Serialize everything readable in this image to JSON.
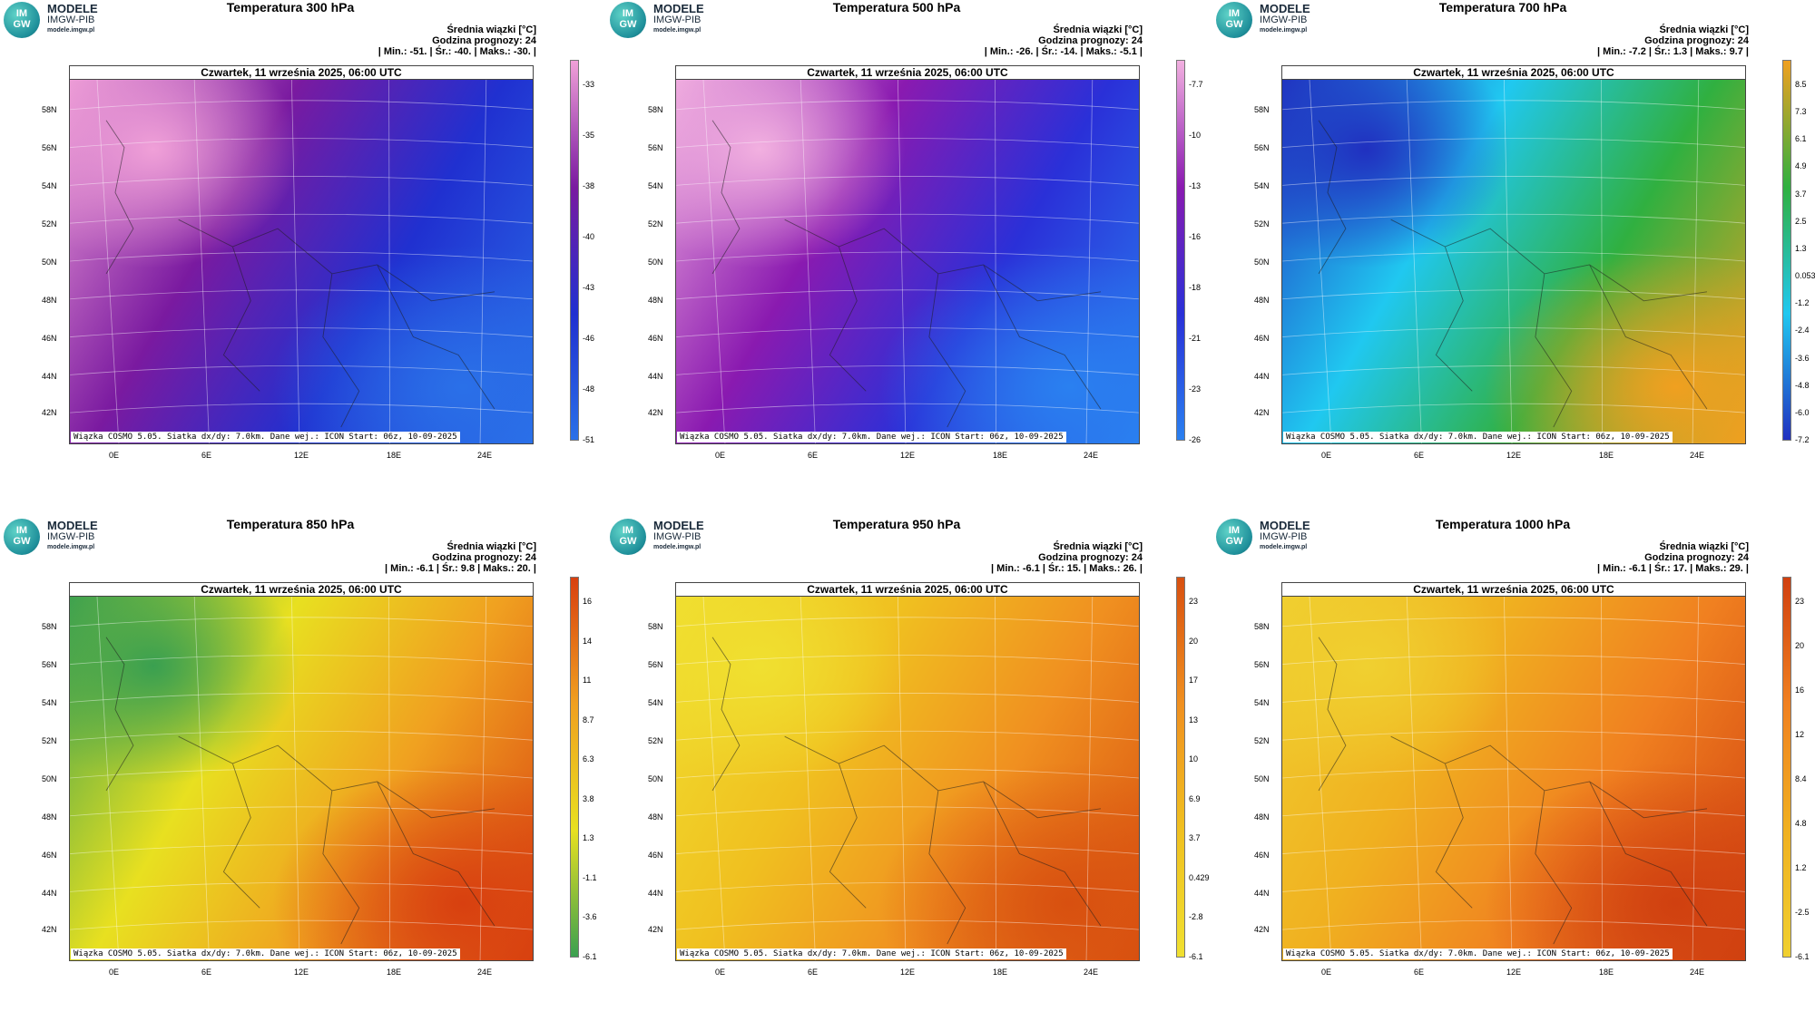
{
  "brand": {
    "line1": "MODELE",
    "line2": "IMGW-PIB",
    "line3": "modele.imgw.pl",
    "logo_top": "IM",
    "logo_bottom": "GW"
  },
  "common": {
    "date": "Czwartek, 11 września 2025, 06:00 UTC",
    "subtitle": "Średnia wiązki [°C]",
    "forecast_hour": "Godzina prognozy: 24",
    "footer": "Wiązka COSMO 5.05. Siatka dx/dy: 7.0km. Dane wej.: ICON Start: 06z, 10-09-2025",
    "lat_labels": [
      "58N",
      "56N",
      "54N",
      "52N",
      "50N",
      "48N",
      "46N",
      "44N",
      "42N"
    ],
    "lon_labels": [
      "0E",
      "6E",
      "12E",
      "18E",
      "24E"
    ]
  },
  "panels": [
    {
      "title": "Temperatura 300 hPa",
      "stats": "| Min.:   -51. | Śr.:   -40. | Maks.:   -30. |",
      "colorbar": [
        "-33",
        "-35",
        "-38",
        "-40",
        "-43",
        "-46",
        "-48",
        "-51"
      ],
      "colors": {
        "a": "#f0a0d8",
        "b": "#7a1aa0",
        "c": "#2030d0",
        "d": "#2a70e8"
      }
    },
    {
      "title": "Temperatura 500 hPa",
      "stats": "| Min.:   -26. | Śr.:   -14. | Maks.:   -5.1 |",
      "colorbar": [
        "-7.7",
        "-10",
        "-13",
        "-16",
        "-18",
        "-21",
        "-23",
        "-26"
      ],
      "colors": {
        "a": "#f2b0e0",
        "b": "#8a1ab0",
        "c": "#2a30d8",
        "d": "#2a80f0"
      }
    },
    {
      "title": "Temperatura 700 hPa",
      "stats": "| Min.:   -7.2 | Śr.:   1.3 | Maks.:   9.7 |",
      "colorbar": [
        "8.5",
        "7.3",
        "6.1",
        "4.9",
        "3.7",
        "2.5",
        "1.3",
        "0.053",
        "-1.2",
        "-2.4",
        "-3.6",
        "-4.8",
        "-6.0",
        "-7.2"
      ],
      "colors": {
        "a": "#2030c0",
        "b": "#20c8f0",
        "c": "#30b040",
        "d": "#f0a020"
      }
    },
    {
      "title": "Temperatura 850 hPa",
      "stats": "| Min.:   -6.1 | Śr.:   9.8 | Maks.:   20. |",
      "colorbar": [
        "16",
        "14",
        "11",
        "8.7",
        "6.3",
        "3.8",
        "1.3",
        "-1.1",
        "-3.6",
        "-6.1"
      ],
      "colors": {
        "a": "#3aa050",
        "b": "#e8e020",
        "c": "#f0a020",
        "d": "#d84010"
      }
    },
    {
      "title": "Temperatura 950 hPa",
      "stats": "| Min.:   -6.1 | Śr.:   15. | Maks.:   26. |",
      "colorbar": [
        "23",
        "20",
        "17",
        "13",
        "10",
        "6.9",
        "3.7",
        "0.429",
        "-2.8",
        "-6.1"
      ],
      "colors": {
        "a": "#f0e030",
        "b": "#f0c020",
        "c": "#f09020",
        "d": "#d85010"
      }
    },
    {
      "title": "Temperatura 1000 hPa",
      "stats": "| Min.:   -6.1 | Śr.:   17. | Maks.:   29. |",
      "colorbar": [
        "23",
        "20",
        "16",
        "12",
        "8.4",
        "4.8",
        "1.2",
        "-2.5",
        "-6.1"
      ],
      "colors": {
        "a": "#f0d030",
        "b": "#f0b020",
        "c": "#f08020",
        "d": "#d04010"
      }
    }
  ]
}
